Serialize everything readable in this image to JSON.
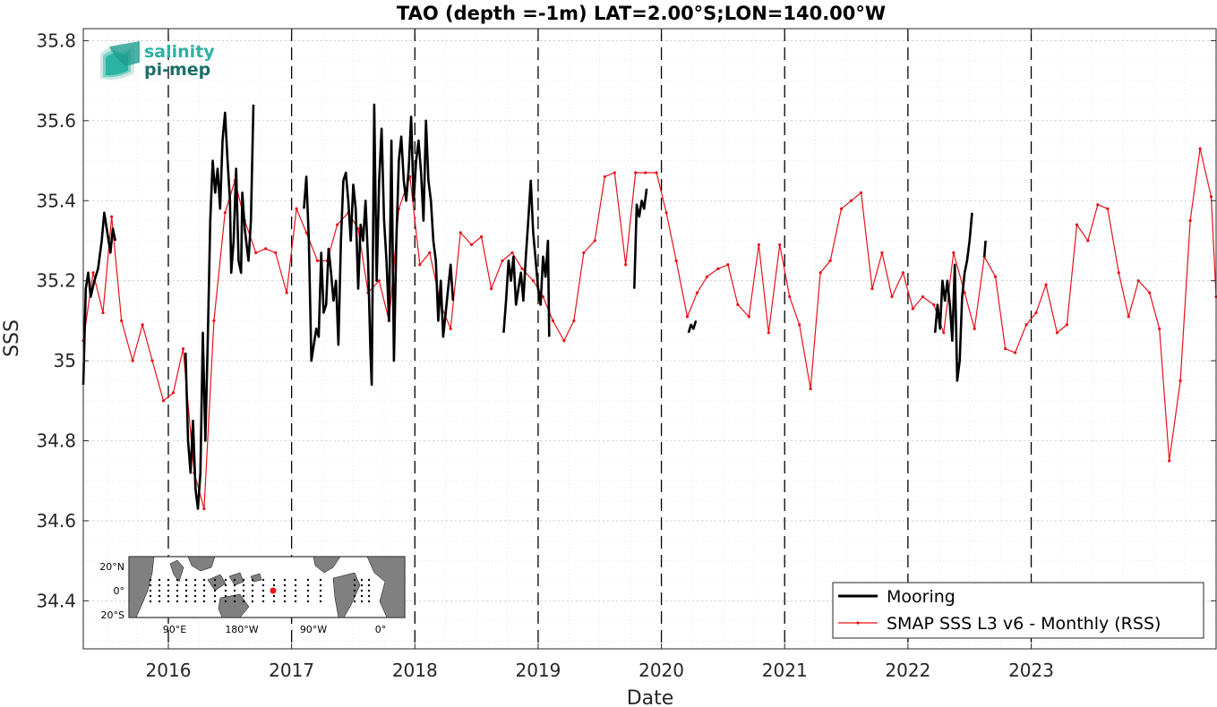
{
  "colors": {
    "mooring": "#000000",
    "smap": "#e8111a",
    "grid": "#d9d9d9",
    "land": "#808080",
    "logo_light": "#2bb3a3",
    "logo_dark": "#1d6f6a"
  },
  "logo": {
    "line1": "salinity",
    "line2": "pi-mep"
  },
  "inset_map": {
    "lat_labels": [
      "20°N",
      "0°",
      "20°S"
    ],
    "lon_labels": [
      "90°E",
      "180°W",
      "90°W",
      "0°"
    ],
    "marker_color": "#e8111a"
  },
  "chart_data": {
    "type": "line",
    "title": "TAO (depth =-1m) LAT=2.00°S;LON=140.00°W",
    "xlabel": "Date",
    "ylabel": "SSS",
    "xlim": [
      2015.31,
      2024.5
    ],
    "ylim": [
      34.28,
      35.83
    ],
    "yticks": [
      34.4,
      34.6,
      34.8,
      35,
      35.2,
      35.4,
      35.6,
      35.8
    ],
    "ytick_labels": [
      "34.4",
      "34.6",
      "34.8",
      "35",
      "35.2",
      "35.4",
      "35.6",
      "35.8"
    ],
    "xticks": [
      2016,
      2017,
      2018,
      2019,
      2020,
      2021,
      2022,
      2023
    ],
    "xtick_labels": [
      "2016",
      "2017",
      "2018",
      "2019",
      "2020",
      "2021",
      "2022",
      "2023"
    ],
    "year_markers": [
      2016,
      2017,
      2018,
      2019,
      2020,
      2021,
      2022,
      2023
    ],
    "grid": true,
    "legend_position": "bottom-right",
    "series": [
      {
        "name": "Mooring",
        "color": "#000000",
        "segments": [
          [
            [
              2015.31,
              34.94
            ],
            [
              2015.33,
              35.18
            ],
            [
              2015.35,
              35.22
            ],
            [
              2015.37,
              35.16
            ],
            [
              2015.4,
              35.2
            ],
            [
              2015.43,
              35.23
            ],
            [
              2015.46,
              35.3
            ],
            [
              2015.48,
              35.37
            ],
            [
              2015.5,
              35.33
            ],
            [
              2015.53,
              35.27
            ],
            [
              2015.55,
              35.33
            ],
            [
              2015.57,
              35.3
            ]
          ],
          [
            [
              2016.14,
              35.02
            ],
            [
              2016.16,
              34.8
            ],
            [
              2016.18,
              34.72
            ],
            [
              2016.2,
              34.85
            ],
            [
              2016.22,
              34.68
            ],
            [
              2016.24,
              34.63
            ],
            [
              2016.26,
              34.72
            ],
            [
              2016.28,
              35.07
            ],
            [
              2016.3,
              34.8
            ],
            [
              2016.32,
              35.05
            ],
            [
              2016.34,
              35.35
            ],
            [
              2016.36,
              35.5
            ],
            [
              2016.38,
              35.42
            ],
            [
              2016.4,
              35.48
            ],
            [
              2016.42,
              35.38
            ],
            [
              2016.44,
              35.55
            ],
            [
              2016.46,
              35.62
            ],
            [
              2016.48,
              35.5
            ],
            [
              2016.5,
              35.4
            ],
            [
              2016.51,
              35.22
            ],
            [
              2016.53,
              35.3
            ],
            [
              2016.55,
              35.48
            ],
            [
              2016.57,
              35.25
            ],
            [
              2016.59,
              35.22
            ],
            [
              2016.6,
              35.42
            ],
            [
              2016.62,
              35.33
            ],
            [
              2016.65,
              35.25
            ],
            [
              2016.67,
              35.35
            ],
            [
              2016.69,
              35.64
            ]
          ],
          [
            [
              2017.1,
              35.38
            ],
            [
              2017.12,
              35.46
            ],
            [
              2017.14,
              35.3
            ],
            [
              2017.16,
              35.0
            ],
            [
              2017.18,
              35.04
            ],
            [
              2017.2,
              35.08
            ],
            [
              2017.22,
              35.06
            ],
            [
              2017.24,
              35.27
            ],
            [
              2017.26,
              35.12
            ],
            [
              2017.28,
              35.14
            ],
            [
              2017.3,
              35.28
            ],
            [
              2017.32,
              35.22
            ],
            [
              2017.34,
              35.15
            ],
            [
              2017.36,
              35.2
            ],
            [
              2017.38,
              35.04
            ],
            [
              2017.4,
              35.3
            ],
            [
              2017.42,
              35.45
            ],
            [
              2017.44,
              35.47
            ],
            [
              2017.46,
              35.4
            ],
            [
              2017.48,
              35.3
            ],
            [
              2017.5,
              35.44
            ],
            [
              2017.52,
              35.38
            ],
            [
              2017.54,
              35.18
            ],
            [
              2017.56,
              35.34
            ],
            [
              2017.58,
              35.3
            ],
            [
              2017.6,
              35.4
            ],
            [
              2017.62,
              35.25
            ],
            [
              2017.64,
              35.02
            ],
            [
              2017.65,
              34.94
            ],
            [
              2017.67,
              35.64
            ],
            [
              2017.69,
              35.2
            ],
            [
              2017.71,
              35.45
            ],
            [
              2017.73,
              35.58
            ],
            [
              2017.75,
              35.35
            ],
            [
              2017.77,
              35.25
            ],
            [
              2017.79,
              35.1
            ],
            [
              2017.81,
              35.55
            ],
            [
              2017.83,
              35.0
            ],
            [
              2017.85,
              35.3
            ],
            [
              2017.87,
              35.5
            ],
            [
              2017.89,
              35.56
            ],
            [
              2017.91,
              35.45
            ],
            [
              2017.93,
              35.4
            ],
            [
              2017.95,
              35.48
            ],
            [
              2017.97,
              35.61
            ],
            [
              2017.99,
              35.4
            ],
            [
              2018.01,
              35.5
            ],
            [
              2018.03,
              35.55
            ],
            [
              2018.05,
              35.47
            ],
            [
              2018.07,
              35.35
            ],
            [
              2018.09,
              35.6
            ],
            [
              2018.11,
              35.45
            ],
            [
              2018.13,
              35.4
            ],
            [
              2018.15,
              35.3
            ],
            [
              2018.17,
              35.25
            ],
            [
              2018.19,
              35.1
            ],
            [
              2018.21,
              35.2
            ],
            [
              2018.23,
              35.06
            ],
            [
              2018.25,
              35.12
            ],
            [
              2018.27,
              35.18
            ],
            [
              2018.29,
              35.24
            ],
            [
              2018.31,
              35.15
            ]
          ],
          [
            [
              2018.72,
              35.07
            ],
            [
              2018.74,
              35.15
            ],
            [
              2018.76,
              35.25
            ],
            [
              2018.78,
              35.2
            ],
            [
              2018.8,
              35.26
            ],
            [
              2018.82,
              35.14
            ],
            [
              2018.84,
              35.18
            ],
            [
              2018.86,
              35.22
            ],
            [
              2018.88,
              35.15
            ],
            [
              2018.9,
              35.26
            ],
            [
              2018.92,
              35.35
            ],
            [
              2018.94,
              35.45
            ],
            [
              2018.96,
              35.32
            ],
            [
              2018.98,
              35.25
            ],
            [
              2019.0,
              35.18
            ],
            [
              2019.02,
              35.14
            ],
            [
              2019.04,
              35.26
            ],
            [
              2019.06,
              35.21
            ],
            [
              2019.08,
              35.3
            ],
            [
              2019.09,
              35.06
            ]
          ],
          [
            [
              2019.78,
              35.18
            ],
            [
              2019.8,
              35.39
            ],
            [
              2019.82,
              35.36
            ],
            [
              2019.84,
              35.4
            ],
            [
              2019.86,
              35.38
            ],
            [
              2019.88,
              35.43
            ]
          ],
          [
            [
              2020.22,
              35.07
            ],
            [
              2020.24,
              35.09
            ],
            [
              2020.26,
              35.08
            ],
            [
              2020.28,
              35.1
            ]
          ],
          [
            [
              2022.22,
              35.07
            ],
            [
              2022.24,
              35.14
            ],
            [
              2022.26,
              35.08
            ],
            [
              2022.28,
              35.2
            ],
            [
              2022.3,
              35.15
            ],
            [
              2022.32,
              35.2
            ],
            [
              2022.34,
              35.14
            ],
            [
              2022.36,
              35.05
            ],
            [
              2022.38,
              35.24
            ],
            [
              2022.4,
              34.95
            ],
            [
              2022.42,
              35.0
            ],
            [
              2022.44,
              35.16
            ],
            [
              2022.46,
              35.22
            ],
            [
              2022.48,
              35.25
            ],
            [
              2022.5,
              35.3
            ],
            [
              2022.52,
              35.37
            ]
          ],
          [
            [
              2022.62,
              35.26
            ],
            [
              2022.63,
              35.3
            ]
          ]
        ]
      },
      {
        "name": "SMAP SSS L3 v6 - Monthly (RSS)",
        "color": "#e8111a",
        "x": [
          2015.31,
          2015.39,
          2015.47,
          2015.54,
          2015.62,
          2015.71,
          2015.79,
          2015.87,
          2015.96,
          2016.04,
          2016.12,
          2016.21,
          2016.29,
          2016.37,
          2016.46,
          2016.54,
          2016.62,
          2016.71,
          2016.79,
          2016.87,
          2016.96,
          2017.04,
          2017.12,
          2017.21,
          2017.29,
          2017.37,
          2017.46,
          2017.54,
          2017.62,
          2017.71,
          2017.79,
          2017.87,
          2017.96,
          2018.04,
          2018.12,
          2018.21,
          2018.29,
          2018.37,
          2018.46,
          2018.54,
          2018.62,
          2018.71,
          2018.79,
          2018.87,
          2018.96,
          2019.04,
          2019.12,
          2019.21,
          2019.29,
          2019.37,
          2019.46,
          2019.54,
          2019.62,
          2019.71,
          2019.79,
          2019.87,
          2019.96,
          2020.04,
          2020.12,
          2020.21,
          2020.29,
          2020.37,
          2020.46,
          2020.54,
          2020.62,
          2020.71,
          2020.79,
          2020.87,
          2020.96,
          2021.04,
          2021.12,
          2021.21,
          2021.29,
          2021.37,
          2021.46,
          2021.54,
          2021.62,
          2021.71,
          2021.79,
          2021.87,
          2021.96,
          2022.04,
          2022.12,
          2022.21,
          2022.29,
          2022.37,
          2022.46,
          2022.54,
          2022.62,
          2022.71,
          2022.79,
          2022.87,
          2022.96,
          2023.04,
          2023.12,
          2023.21,
          2023.29,
          2023.37,
          2023.46,
          2023.54,
          2023.62,
          2023.71,
          2023.79,
          2023.87,
          2023.96,
          2024.04,
          2024.12,
          2024.21,
          2024.29,
          2024.37,
          2024.46,
          2024.5
        ],
        "values": [
          35.05,
          35.22,
          35.12,
          35.36,
          35.1,
          35.0,
          35.09,
          35.0,
          34.9,
          34.92,
          35.03,
          34.72,
          34.63,
          35.1,
          35.37,
          35.45,
          35.35,
          35.27,
          35.28,
          35.27,
          35.17,
          35.38,
          35.32,
          35.25,
          35.25,
          35.34,
          35.37,
          35.33,
          35.17,
          35.2,
          35.1,
          35.38,
          35.46,
          35.24,
          35.27,
          35.14,
          35.08,
          35.32,
          35.29,
          35.31,
          35.18,
          35.25,
          35.27,
          35.23,
          35.2,
          35.16,
          35.1,
          35.05,
          35.1,
          35.27,
          35.3,
          35.46,
          35.47,
          35.24,
          35.47,
          35.47,
          35.47,
          35.37,
          35.25,
          35.11,
          35.17,
          35.21,
          35.23,
          35.24,
          35.14,
          35.11,
          35.29,
          35.07,
          35.29,
          35.16,
          35.09,
          34.93,
          35.22,
          35.25,
          35.38,
          35.4,
          35.42,
          35.18,
          35.27,
          35.16,
          35.22,
          35.13,
          35.16,
          35.14,
          35.07,
          35.27,
          35.17,
          35.08,
          35.26,
          35.21,
          35.03,
          35.02,
          35.09,
          35.12,
          35.19,
          35.07,
          35.09,
          35.34,
          35.3,
          35.39,
          35.38,
          35.22,
          35.11,
          35.2,
          35.17,
          35.08,
          34.75,
          34.95,
          35.35,
          35.53,
          35.41,
          35.16
        ]
      }
    ]
  }
}
